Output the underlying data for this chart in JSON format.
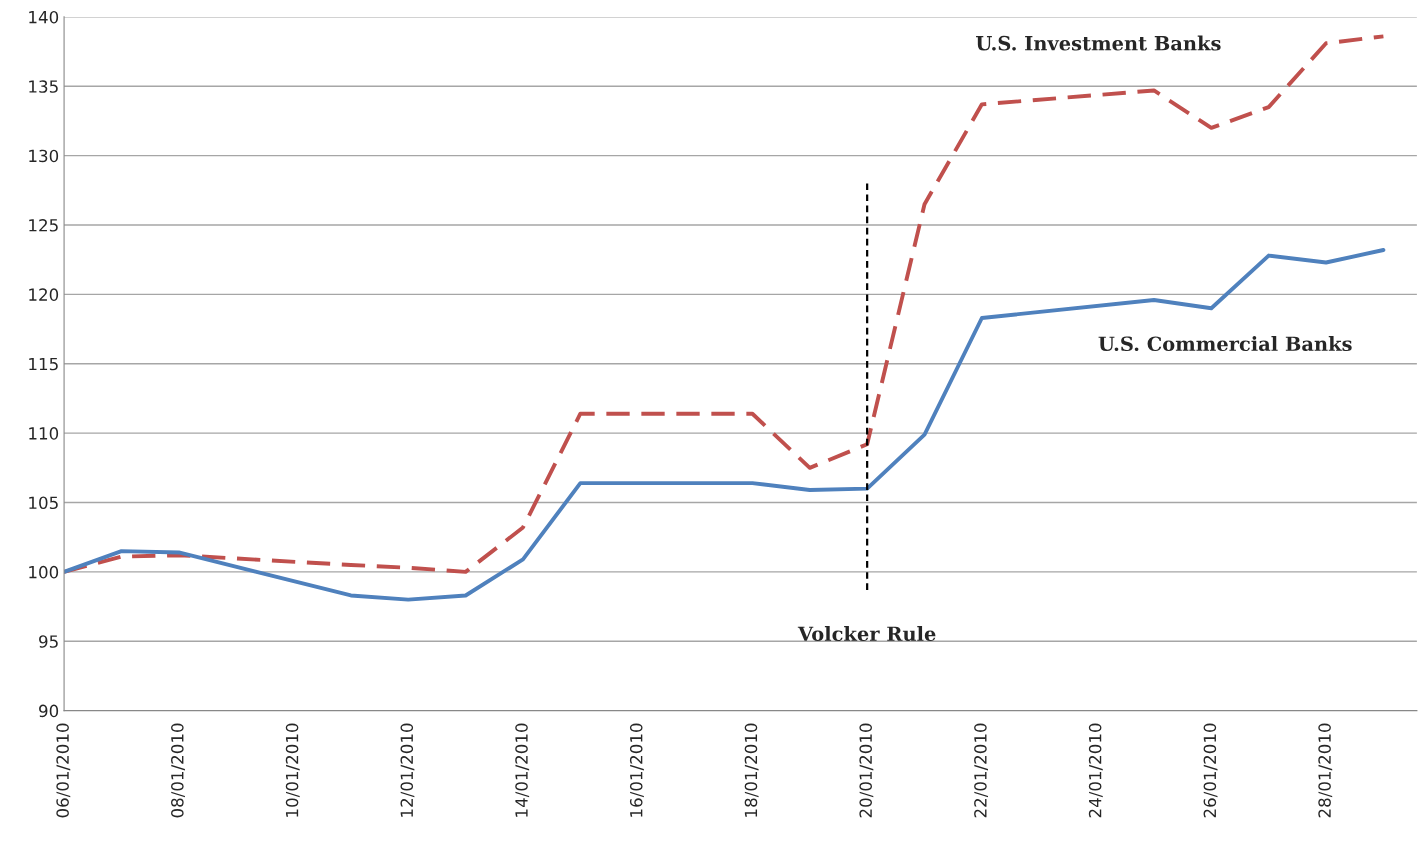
{
  "chart_data": {
    "type": "line",
    "x": [
      "2010-01-06",
      "2010-01-07",
      "2010-01-08",
      "2010-01-11",
      "2010-01-12",
      "2010-01-13",
      "2010-01-14",
      "2010-01-15",
      "2010-01-18",
      "2010-01-19",
      "2010-01-20",
      "2010-01-21",
      "2010-01-22",
      "2010-01-25",
      "2010-01-26",
      "2010-01-27",
      "2010-01-28",
      "2010-01-29"
    ],
    "series": [
      {
        "name": "U.S. Investment Banks",
        "color": "#c0504d",
        "line_style": "dashed",
        "values": [
          100,
          101.1,
          101.2,
          100.5,
          100.3,
          100.0,
          103.2,
          111.4,
          111.4,
          107.5,
          109.2,
          126.5,
          133.7,
          134.7,
          132.0,
          133.5,
          138.1,
          138.6
        ]
      },
      {
        "name": "U.S. Commercial Banks",
        "color": "#4f81bd",
        "line_style": "solid",
        "values": [
          100,
          101.5,
          101.4,
          98.3,
          98.0,
          98.3,
          100.9,
          106.4,
          106.4,
          105.9,
          106.0,
          109.9,
          118.3,
          119.6,
          119.0,
          122.8,
          122.3,
          123.2
        ]
      },
      {
        "name": "Volcker Rule",
        "color": "#000000",
        "line_style": "dotted",
        "x": [
          "2010-01-20",
          "2010-01-20"
        ],
        "values": [
          98.7,
          128
        ]
      }
    ],
    "xlim": [
      "2010-01-06",
      "2010-01-29T14:00"
    ],
    "xticks": [
      {
        "value": "2010-01-06",
        "label": "06/01/2010"
      },
      {
        "value": "2010-01-08",
        "label": "08/01/2010"
      },
      {
        "value": "2010-01-10",
        "label": "10/01/2010"
      },
      {
        "value": "2010-01-12",
        "label": "12/01/2010"
      },
      {
        "value": "2010-01-14",
        "label": "14/01/2010"
      },
      {
        "value": "2010-01-16",
        "label": "16/01/2010"
      },
      {
        "value": "2010-01-18",
        "label": "18/01/2010"
      },
      {
        "value": "2010-01-20",
        "label": "20/01/2010"
      },
      {
        "value": "2010-01-22",
        "label": "22/01/2010"
      },
      {
        "value": "2010-01-24",
        "label": "24/01/2010"
      },
      {
        "value": "2010-01-26",
        "label": "26/01/2010"
      },
      {
        "value": "2010-01-28",
        "label": "28/01/2010"
      }
    ],
    "ylim": [
      90,
      140
    ],
    "yticks": [
      90,
      95,
      100,
      105,
      110,
      115,
      120,
      125,
      130,
      135,
      140
    ],
    "grid": "y",
    "legend": false,
    "marker": "none"
  }
}
